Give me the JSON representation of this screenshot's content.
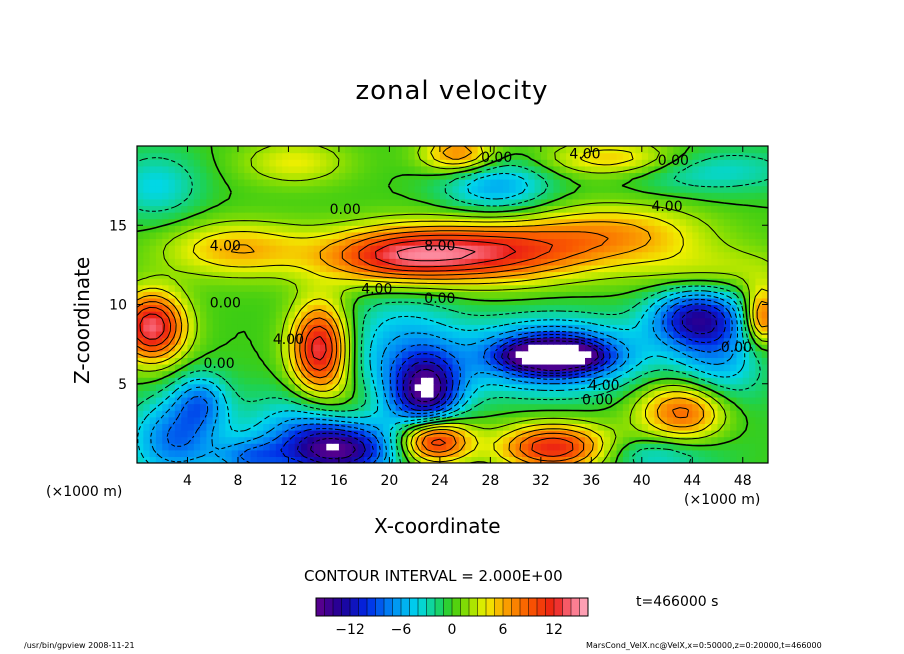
{
  "chart_data": {
    "type": "heatmap",
    "title": "zonal velocity",
    "xlabel": "X-coordinate",
    "ylabel": "Z-coordinate",
    "x_unit_left": "(×1000 m)",
    "x_unit_right": "(×1000 m)",
    "xlim": [
      0,
      50
    ],
    "ylim": [
      0,
      20
    ],
    "x_ticks": [
      4,
      8,
      12,
      16,
      20,
      24,
      28,
      32,
      36,
      40,
      44,
      48
    ],
    "y_ticks": [
      5,
      10,
      15
    ],
    "contour_interval": "CONTOUR INTERVAL = 2.000E+00",
    "contour_labels": [
      {
        "text": "0.00",
        "x": 28.5,
        "y": 19.0
      },
      {
        "text": "4.00",
        "x": 35.5,
        "y": 19.2
      },
      {
        "text": "0.00",
        "x": 42.5,
        "y": 18.8
      },
      {
        "text": "0.00",
        "x": 16.5,
        "y": 15.7
      },
      {
        "text": "4.00",
        "x": 42.0,
        "y": 15.9
      },
      {
        "text": "4.00",
        "x": 7.0,
        "y": 13.4
      },
      {
        "text": "8.00",
        "x": 24.0,
        "y": 13.4
      },
      {
        "text": "4.00",
        "x": 19.0,
        "y": 10.7
      },
      {
        "text": "0.00",
        "x": 24.0,
        "y": 10.1
      },
      {
        "text": "0.00",
        "x": 7.0,
        "y": 9.8
      },
      {
        "text": "4.00",
        "x": 12.0,
        "y": 7.5
      },
      {
        "text": "0.00",
        "x": 6.5,
        "y": 6.0
      },
      {
        "text": "0.00",
        "x": 47.5,
        "y": 7.0
      },
      {
        "text": "4.00",
        "x": 37.0,
        "y": 4.6
      },
      {
        "text": "0.00",
        "x": 36.5,
        "y": 3.7
      }
    ],
    "colorbar": {
      "min": -16,
      "max": 16,
      "ticks": [
        -12,
        -6,
        0,
        6,
        12
      ],
      "tick_labels": [
        "−12",
        "−6",
        "0",
        "6",
        "12"
      ]
    },
    "features": [
      {
        "x": 33.0,
        "y": 6.8,
        "value": -16,
        "sx": 2.4,
        "sy": 0.6
      },
      {
        "x": 33.0,
        "y": 6.8,
        "value": -12,
        "sx": 4.5,
        "sy": 1.5
      },
      {
        "x": 44.0,
        "y": 9.2,
        "value": -10,
        "sx": 2.5,
        "sy": 1.3
      },
      {
        "x": 46.0,
        "y": 7.0,
        "value": -6,
        "sx": 2.5,
        "sy": 3.0
      },
      {
        "x": 23.0,
        "y": 4.5,
        "value": -12,
        "sx": 1.8,
        "sy": 1.6
      },
      {
        "x": 21.0,
        "y": 6.5,
        "value": -6,
        "sx": 3.5,
        "sy": 3.0
      },
      {
        "x": 16.0,
        "y": 0.8,
        "value": -12,
        "sx": 3.0,
        "sy": 1.2
      },
      {
        "x": 14.0,
        "y": 2.0,
        "value": -6,
        "sx": 4.0,
        "sy": 1.8
      },
      {
        "x": 3.0,
        "y": 1.5,
        "value": -8,
        "sx": 2.5,
        "sy": 1.8
      },
      {
        "x": 5.0,
        "y": 4.0,
        "value": -6,
        "sx": 1.5,
        "sy": 1.2
      },
      {
        "x": 1.5,
        "y": 17.5,
        "value": -4,
        "sx": 2.5,
        "sy": 1.5
      },
      {
        "x": 28.5,
        "y": 17.5,
        "value": -6,
        "sx": 3.0,
        "sy": 1.2
      },
      {
        "x": 45.0,
        "y": 18.5,
        "value": -4,
        "sx": 5.0,
        "sy": 1.0
      },
      {
        "x": 9.0,
        "y": 0.3,
        "value": -6,
        "sx": 2.0,
        "sy": 0.8
      },
      {
        "x": 41.0,
        "y": 0.5,
        "value": -4,
        "sx": 3.0,
        "sy": 0.8
      },
      {
        "x": 27.0,
        "y": 13.3,
        "value": 12,
        "sx": 6.0,
        "sy": 1.3
      },
      {
        "x": 20.0,
        "y": 13.0,
        "value": 8,
        "sx": 4.0,
        "sy": 1.2
      },
      {
        "x": 8.0,
        "y": 13.5,
        "value": 6,
        "sx": 4.0,
        "sy": 1.2
      },
      {
        "x": 38.0,
        "y": 14.5,
        "value": 6,
        "sx": 5.0,
        "sy": 1.3
      },
      {
        "x": 46.0,
        "y": 12.0,
        "value": 4,
        "sx": 4.0,
        "sy": 1.2
      },
      {
        "x": 14.5,
        "y": 7.2,
        "value": 14,
        "sx": 1.6,
        "sy": 2.0
      },
      {
        "x": 1.2,
        "y": 8.6,
        "value": 14,
        "sx": 1.8,
        "sy": 1.5
      },
      {
        "x": 23.5,
        "y": 1.5,
        "value": 14,
        "sx": 2.0,
        "sy": 1.0
      },
      {
        "x": 33.0,
        "y": 1.0,
        "value": 12,
        "sx": 3.0,
        "sy": 1.0
      },
      {
        "x": 43.5,
        "y": 3.3,
        "value": 10,
        "sx": 2.5,
        "sy": 1.3
      },
      {
        "x": 49.5,
        "y": 9.2,
        "value": 10,
        "sx": 1.0,
        "sy": 1.2
      },
      {
        "x": 25.5,
        "y": 19.5,
        "value": 8,
        "sx": 2.0,
        "sy": 0.8
      },
      {
        "x": 38.0,
        "y": 19.2,
        "value": 6,
        "sx": 4.0,
        "sy": 0.8
      },
      {
        "x": 12.5,
        "y": 19.0,
        "value": 4,
        "sx": 3.0,
        "sy": 1.0
      },
      {
        "x": 17.0,
        "y": 3.5,
        "value": 4,
        "sx": 2.0,
        "sy": 1.5
      }
    ]
  },
  "time_label": "t=466000 s",
  "footer_left": "/usr/bin/gpview   2008-11-21",
  "footer_right": "MarsCond_VelX.nc@VelX,x=0:50000,z=0:20000,t=466000"
}
